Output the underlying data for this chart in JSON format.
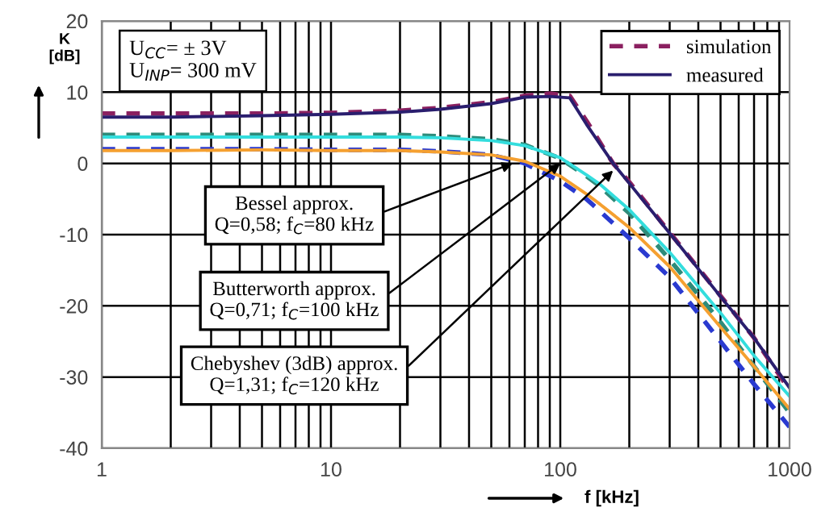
{
  "chart_data": {
    "type": "line",
    "xlabel": "f [kHz]",
    "ylabel": "K\n[dB]",
    "log": "x",
    "xlim": [
      1,
      1000
    ],
    "ylim": [
      -40,
      20
    ],
    "xticks": [
      1,
      10,
      100,
      1000
    ],
    "yticks": [
      -40,
      -30,
      -20,
      -10,
      0,
      10,
      20
    ],
    "grid": true,
    "legend": "top right",
    "marker": "none",
    "series": [
      {
        "name": "simulation",
        "color": "#8b2060",
        "line_style": "dashed",
        "x": [
          1,
          2,
          5,
          10,
          20,
          30,
          50,
          70,
          90,
          110,
          130,
          170,
          200,
          300,
          500,
          700,
          1000
        ],
        "values": [
          7,
          7,
          7,
          7.1,
          7.4,
          7.8,
          8.6,
          9.5,
          9.8,
          9.5,
          6,
          0,
          -2.6,
          -9.7,
          -18.6,
          -24.5,
          -31.8
        ]
      },
      {
        "name": "measured",
        "color": "#2a1e6e",
        "line_style": "solid",
        "x": [
          1,
          2,
          5,
          10,
          20,
          30,
          50,
          70,
          90,
          110,
          130,
          170,
          200,
          300,
          500,
          700,
          1000
        ],
        "values": [
          6.5,
          6.5,
          6.7,
          6.9,
          7.2,
          7.6,
          8.4,
          9.3,
          9.4,
          9.2,
          5.5,
          0,
          -2.8,
          -9.8,
          -18.7,
          -24.5,
          -31.5
        ]
      },
      {
        "color": "#2e8b7a",
        "line_style": "dashed",
        "x": [
          1,
          2,
          5,
          10,
          20,
          30,
          50,
          70,
          100,
          130,
          150,
          200,
          300,
          500,
          700,
          1000
        ],
        "values": [
          4,
          4,
          4,
          4,
          4,
          3.8,
          3.4,
          2.6,
          0.7,
          -1.8,
          -3.3,
          -7,
          -13.5,
          -22.3,
          -28.5,
          -35
        ]
      },
      {
        "color": "#33dddd",
        "line_style": "solid",
        "x": [
          1,
          2,
          5,
          10,
          20,
          30,
          50,
          70,
          100,
          130,
          150,
          200,
          300,
          500,
          700,
          1000
        ],
        "values": [
          3.7,
          3.7,
          3.7,
          3.7,
          3.7,
          3.6,
          3.2,
          2.5,
          0.8,
          -1.6,
          -3,
          -6.5,
          -12.5,
          -21,
          -27,
          -32.7
        ]
      },
      {
        "color": "#2a3ad0",
        "line_style": "dashed",
        "x": [
          1,
          2,
          5,
          10,
          20,
          30,
          50,
          70,
          100,
          130,
          150,
          200,
          300,
          500,
          700,
          1000
        ],
        "values": [
          2,
          2,
          2,
          1.9,
          1.9,
          1.7,
          1.2,
          0,
          -2.5,
          -5,
          -6.8,
          -10.5,
          -16,
          -25,
          -31,
          -37
        ]
      },
      {
        "color": "#f5a030",
        "line_style": "solid",
        "x": [
          1,
          2,
          5,
          10,
          20,
          30,
          50,
          70,
          100,
          130,
          150,
          200,
          300,
          500,
          700,
          1000
        ],
        "values": [
          1.8,
          1.8,
          1.9,
          1.8,
          1.8,
          1.6,
          1.2,
          0.3,
          -1.8,
          -4.3,
          -5.8,
          -9,
          -14.5,
          -23,
          -28.5,
          -34.5
        ]
      }
    ],
    "annotations": [
      "U$_{CC}$= ± 3V\nU$_{INP}$= 300 mV",
      {
        "text": "Bessel approx.\nQ=0,58; f$_{C}$=80 kHz",
        "x": 62,
        "y": 0
      },
      {
        "text": "Butterworth approx.\nQ=0,71; f$_{C}$=100 kHz",
        "x": 100,
        "y": 0
      },
      {
        "text": "Chebyshev (3dB) approx.\nQ=1,31; f$_{C}$=120 kHz",
        "x": 170,
        "y": -1
      }
    ]
  }
}
